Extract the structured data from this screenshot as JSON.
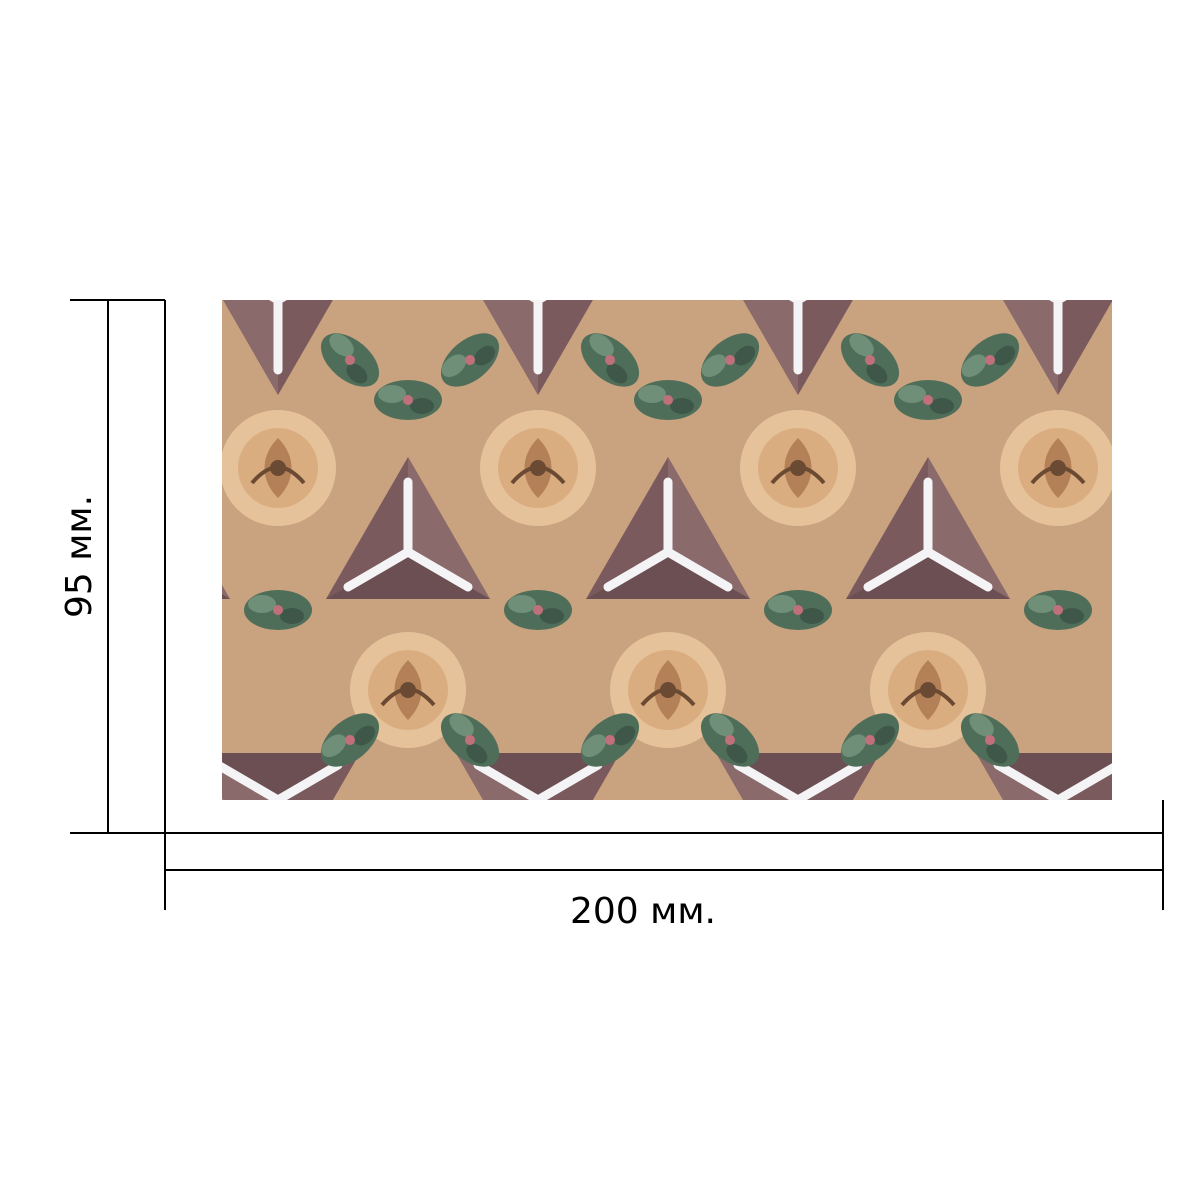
{
  "dimensions": {
    "width_label": "200 мм.",
    "height_label": "95 мм."
  },
  "product": {
    "pattern_icon": "kaleidoscope-pattern-icon",
    "colors": {
      "mauve": "#7a5a5c",
      "peach": "#e6c29a",
      "green": "#4f6e5a",
      "white": "#ffffff",
      "line": "#000000"
    }
  }
}
